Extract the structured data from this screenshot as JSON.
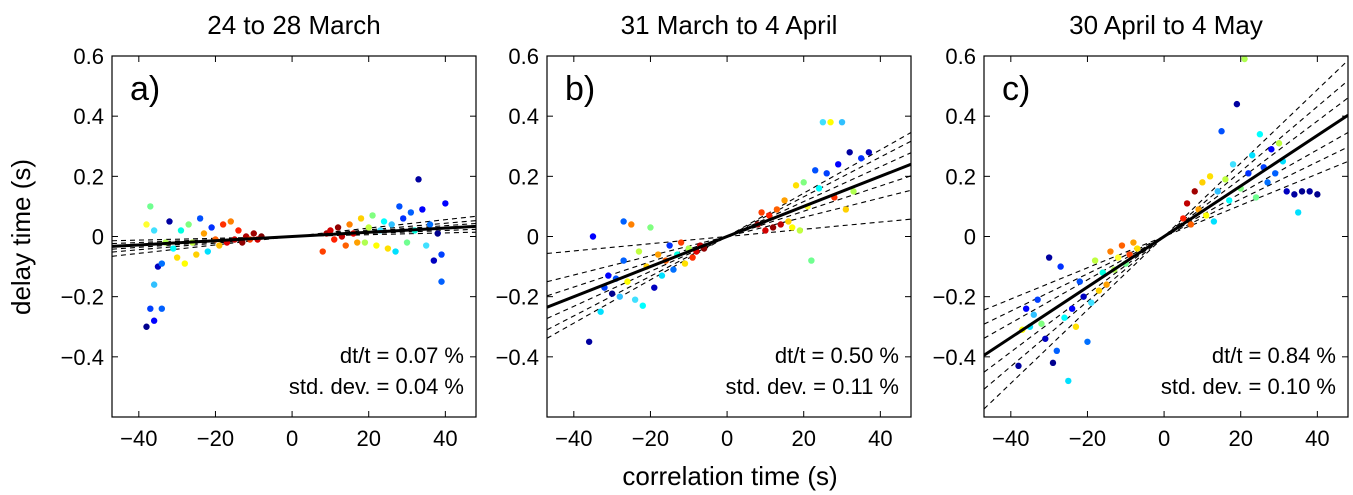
{
  "figure": {
    "xlabel": "correlation time (s)",
    "ylabel": "delay time (s)"
  },
  "chart_data": [
    {
      "type": "scatter",
      "title": "24 to 28 March",
      "panel_label": "a)",
      "annotation": {
        "line1": "dt/t = 0.07 %",
        "line2": "std. dev. = 0.04 %"
      },
      "xlim": [
        -47,
        48
      ],
      "ylim": [
        -0.6,
        0.6
      ],
      "xticks": [
        -40,
        -20,
        0,
        20,
        40
      ],
      "xtick_labels": [
        "−40",
        "−20",
        "0",
        "20",
        "40"
      ],
      "yticks": [
        -0.4,
        -0.2,
        0,
        0.2,
        0.4,
        0.6
      ],
      "ytick_labels": [
        "−0.4",
        "−0.2",
        "0",
        "0.2",
        "0.4",
        "0.6"
      ],
      "fit_slope": 0.0007,
      "dashed_slopes": [
        0.0003,
        0.0005,
        0.0009,
        0.0011,
        0.0014
      ],
      "points": [
        {
          "x": -38,
          "y": -0.3,
          "c": "#00008f"
        },
        {
          "x": -37,
          "y": -0.24,
          "c": "#0040ff"
        },
        {
          "x": -36,
          "y": -0.28,
          "c": "#0000ff"
        },
        {
          "x": -34,
          "y": -0.24,
          "c": "#0060ff"
        },
        {
          "x": -35,
          "y": -0.1,
          "c": "#0000c0"
        },
        {
          "x": -36,
          "y": -0.16,
          "c": "#30c0ff"
        },
        {
          "x": -34,
          "y": -0.09,
          "c": "#0070ff"
        },
        {
          "x": -37,
          "y": 0.1,
          "c": "#70ff90"
        },
        {
          "x": -38,
          "y": 0.04,
          "c": "#ffff30"
        },
        {
          "x": -36,
          "y": 0.02,
          "c": "#40e0ff"
        },
        {
          "x": -33,
          "y": -0.02,
          "c": "#b0ff50"
        },
        {
          "x": -32,
          "y": 0.05,
          "c": "#0000a0"
        },
        {
          "x": -31,
          "y": -0.04,
          "c": "#00ffff"
        },
        {
          "x": -30,
          "y": -0.07,
          "c": "#ffe000"
        },
        {
          "x": -29,
          "y": 0.02,
          "c": "#00ffe0"
        },
        {
          "x": -28,
          "y": -0.09,
          "c": "#ffff00"
        },
        {
          "x": -27,
          "y": 0.04,
          "c": "#80ff80"
        },
        {
          "x": -26,
          "y": -0.02,
          "c": "#c0ff40"
        },
        {
          "x": -25,
          "y": -0.06,
          "c": "#ffd000"
        },
        {
          "x": -24,
          "y": 0.06,
          "c": "#0050ff"
        },
        {
          "x": -23,
          "y": 0.01,
          "c": "#ffa000"
        },
        {
          "x": -22,
          "y": -0.05,
          "c": "#00e0ff"
        },
        {
          "x": -21,
          "y": 0.03,
          "c": "#0030ff"
        },
        {
          "x": -20,
          "y": -0.01,
          "c": "#ff6000"
        },
        {
          "x": -19,
          "y": -0.03,
          "c": "#ffc000"
        },
        {
          "x": -18,
          "y": 0.04,
          "c": "#ff3000"
        },
        {
          "x": -17,
          "y": -0.02,
          "c": "#e00000"
        },
        {
          "x": -16,
          "y": 0.05,
          "c": "#ff8000"
        },
        {
          "x": -15,
          "y": -0.01,
          "c": "#c00000"
        },
        {
          "x": -14,
          "y": 0.02,
          "c": "#ff2000"
        },
        {
          "x": -13,
          "y": -0.02,
          "c": "#900000"
        },
        {
          "x": -12,
          "y": 0.0,
          "c": "#b00000"
        },
        {
          "x": -11,
          "y": -0.01,
          "c": "#ff4000"
        },
        {
          "x": -10,
          "y": 0.01,
          "c": "#a00000"
        },
        {
          "x": -9,
          "y": -0.01,
          "c": "#d00000"
        },
        {
          "x": -8,
          "y": 0.0,
          "c": "#800000"
        },
        {
          "x": 8,
          "y": -0.05,
          "c": "#ff4000"
        },
        {
          "x": 9,
          "y": 0.01,
          "c": "#a00000"
        },
        {
          "x": 10,
          "y": 0.02,
          "c": "#d00000"
        },
        {
          "x": 11,
          "y": -0.01,
          "c": "#ff2000"
        },
        {
          "x": 12,
          "y": 0.03,
          "c": "#900000"
        },
        {
          "x": 13,
          "y": 0.0,
          "c": "#c00000"
        },
        {
          "x": 14,
          "y": -0.03,
          "c": "#ff6000"
        },
        {
          "x": 15,
          "y": 0.04,
          "c": "#ff8000"
        },
        {
          "x": 16,
          "y": 0.01,
          "c": "#e00000"
        },
        {
          "x": 17,
          "y": -0.02,
          "c": "#ffa000"
        },
        {
          "x": 18,
          "y": 0.06,
          "c": "#ffd000"
        },
        {
          "x": 19,
          "y": -0.02,
          "c": "#b0ff50"
        },
        {
          "x": 20,
          "y": 0.03,
          "c": "#c0ff40"
        },
        {
          "x": 21,
          "y": 0.07,
          "c": "#80ff80"
        },
        {
          "x": 22,
          "y": -0.03,
          "c": "#ffff00"
        },
        {
          "x": 23,
          "y": 0.02,
          "c": "#40e0ff"
        },
        {
          "x": 24,
          "y": 0.05,
          "c": "#00ffff"
        },
        {
          "x": 25,
          "y": -0.04,
          "c": "#ffe000"
        },
        {
          "x": 26,
          "y": 0.04,
          "c": "#30c0ff"
        },
        {
          "x": 27,
          "y": -0.05,
          "c": "#00e0ff"
        },
        {
          "x": 28,
          "y": 0.1,
          "c": "#0050ff"
        },
        {
          "x": 29,
          "y": 0.06,
          "c": "#0030ff"
        },
        {
          "x": 30,
          "y": -0.02,
          "c": "#70ff90"
        },
        {
          "x": 31,
          "y": 0.08,
          "c": "#0060ff"
        },
        {
          "x": 32,
          "y": 0.02,
          "c": "#00ffe0"
        },
        {
          "x": 33,
          "y": 0.19,
          "c": "#0000a0"
        },
        {
          "x": 34,
          "y": 0.09,
          "c": "#0000ff"
        },
        {
          "x": 35,
          "y": -0.03,
          "c": "#40e0ff"
        },
        {
          "x": 36,
          "y": 0.04,
          "c": "#0070ff"
        },
        {
          "x": 37,
          "y": -0.08,
          "c": "#0000c0"
        },
        {
          "x": 38,
          "y": 0.01,
          "c": "#00008f"
        },
        {
          "x": 39,
          "y": -0.15,
          "c": "#0060ff"
        },
        {
          "x": 40,
          "y": 0.11,
          "c": "#0000ff"
        },
        {
          "x": 39,
          "y": -0.06,
          "c": "#0040ff"
        }
      ]
    },
    {
      "type": "scatter",
      "title": "31 March to 4 April",
      "panel_label": "b)",
      "annotation": {
        "line1": "dt/t = 0.50 %",
        "line2": "std. dev. = 0.11 %"
      },
      "xlim": [
        -47,
        48
      ],
      "ylim": [
        -0.6,
        0.6
      ],
      "xticks": [
        -40,
        -20,
        0,
        20,
        40
      ],
      "xtick_labels": [
        "−40",
        "−20",
        "0",
        "20",
        "40"
      ],
      "yticks": [
        -0.4,
        -0.2,
        0,
        0.2,
        0.4,
        0.6
      ],
      "ytick_labels": [
        "−0.4",
        "−0.2",
        "0",
        "0.2",
        "0.4",
        "0.6"
      ],
      "fit_slope": 0.005,
      "dashed_slopes": [
        0.0012,
        0.0032,
        0.0042,
        0.0058,
        0.0066,
        0.0072
      ],
      "points": [
        {
          "x": -36,
          "y": -0.35,
          "c": "#0000a0"
        },
        {
          "x": -32,
          "y": -0.17,
          "c": "#0040ff"
        },
        {
          "x": -31,
          "y": -0.13,
          "c": "#0000ff"
        },
        {
          "x": -30,
          "y": -0.19,
          "c": "#00008f"
        },
        {
          "x": -29,
          "y": -0.14,
          "c": "#0050ff"
        },
        {
          "x": -28,
          "y": -0.2,
          "c": "#30c0ff"
        },
        {
          "x": -27,
          "y": -0.08,
          "c": "#0060ff"
        },
        {
          "x": -26,
          "y": -0.15,
          "c": "#ffff00"
        },
        {
          "x": -25,
          "y": 0.04,
          "c": "#ff8000"
        },
        {
          "x": -24,
          "y": -0.21,
          "c": "#40e0ff"
        },
        {
          "x": -23,
          "y": -0.05,
          "c": "#c0ff40"
        },
        {
          "x": -22,
          "y": -0.23,
          "c": "#00ffff"
        },
        {
          "x": -21,
          "y": -0.1,
          "c": "#ffd000"
        },
        {
          "x": -20,
          "y": 0.03,
          "c": "#80ff80"
        },
        {
          "x": -19,
          "y": -0.17,
          "c": "#0000c0"
        },
        {
          "x": -18,
          "y": -0.06,
          "c": "#ffa000"
        },
        {
          "x": -17,
          "y": -0.13,
          "c": "#00e0ff"
        },
        {
          "x": -16,
          "y": -0.08,
          "c": "#ff6000"
        },
        {
          "x": -15,
          "y": -0.03,
          "c": "#0030ff"
        },
        {
          "x": -14,
          "y": -0.11,
          "c": "#0070ff"
        },
        {
          "x": -13,
          "y": -0.06,
          "c": "#00ffe0"
        },
        {
          "x": -12,
          "y": -0.02,
          "c": "#ff4000"
        },
        {
          "x": -11,
          "y": -0.09,
          "c": "#ffe000"
        },
        {
          "x": -10,
          "y": -0.04,
          "c": "#b0ff50"
        },
        {
          "x": -9,
          "y": -0.07,
          "c": "#ff3000"
        },
        {
          "x": -8,
          "y": -0.05,
          "c": "#e00000"
        },
        {
          "x": -7,
          "y": -0.03,
          "c": "#c00000"
        },
        {
          "x": -6,
          "y": -0.04,
          "c": "#900000"
        },
        {
          "x": 8,
          "y": 0.04,
          "c": "#a00000"
        },
        {
          "x": 9,
          "y": 0.08,
          "c": "#ff4000"
        },
        {
          "x": 10,
          "y": 0.02,
          "c": "#d00000"
        },
        {
          "x": 11,
          "y": 0.07,
          "c": "#ff2000"
        },
        {
          "x": 12,
          "y": 0.03,
          "c": "#900000"
        },
        {
          "x": 13,
          "y": 0.09,
          "c": "#ff6000"
        },
        {
          "x": 14,
          "y": 0.04,
          "c": "#c00000"
        },
        {
          "x": 15,
          "y": 0.12,
          "c": "#ffa000"
        },
        {
          "x": 16,
          "y": 0.05,
          "c": "#ffd000"
        },
        {
          "x": 17,
          "y": 0.03,
          "c": "#ffff00"
        },
        {
          "x": 18,
          "y": 0.17,
          "c": "#ffe000"
        },
        {
          "x": 19,
          "y": 0.02,
          "c": "#c0ff40"
        },
        {
          "x": 20,
          "y": 0.18,
          "c": "#80ff80"
        },
        {
          "x": 21,
          "y": 0.1,
          "c": "#ffff30"
        },
        {
          "x": 22,
          "y": -0.08,
          "c": "#70ff90"
        },
        {
          "x": 23,
          "y": 0.22,
          "c": "#0050ff"
        },
        {
          "x": 24,
          "y": 0.16,
          "c": "#00ffff"
        },
        {
          "x": 25,
          "y": 0.38,
          "c": "#40e0ff"
        },
        {
          "x": 26,
          "y": 0.21,
          "c": "#0040ff"
        },
        {
          "x": 27,
          "y": 0.38,
          "c": "#ffff00"
        },
        {
          "x": 28,
          "y": 0.13,
          "c": "#ff3000"
        },
        {
          "x": 29,
          "y": 0.24,
          "c": "#0000ff"
        },
        {
          "x": 30,
          "y": 0.38,
          "c": "#30c0ff"
        },
        {
          "x": 31,
          "y": 0.09,
          "c": "#ffd000"
        },
        {
          "x": 32,
          "y": 0.28,
          "c": "#0000a0"
        },
        {
          "x": 33,
          "y": 0.15,
          "c": "#b0ff50"
        },
        {
          "x": 35,
          "y": 0.26,
          "c": "#0030ff"
        },
        {
          "x": 37,
          "y": 0.28,
          "c": "#0000c0"
        },
        {
          "x": -35,
          "y": 0.0,
          "c": "#0000ff"
        },
        {
          "x": -33,
          "y": -0.25,
          "c": "#00e0ff"
        },
        {
          "x": -27,
          "y": 0.05,
          "c": "#0060ff"
        }
      ]
    },
    {
      "type": "scatter",
      "title": "30 April to 4 May",
      "panel_label": "c)",
      "annotation": {
        "line1": "dt/t = 0.84 %",
        "line2": "std. dev. = 0.10 %"
      },
      "xlim": [
        -47,
        48
      ],
      "ylim": [
        -0.6,
        0.6
      ],
      "xticks": [
        -40,
        -20,
        0,
        20,
        40
      ],
      "xtick_labels": [
        "−40",
        "−20",
        "0",
        "20",
        "40"
      ],
      "yticks": [
        -0.4,
        -0.2,
        0,
        0.2,
        0.4,
        0.6
      ],
      "ytick_labels": [
        "−0.4",
        "−0.2",
        "0",
        "0.2",
        "0.4",
        "0.6"
      ],
      "fit_slope": 0.0084,
      "dashed_slopes": [
        0.0052,
        0.0062,
        0.0072,
        0.0096,
        0.0108,
        0.0122
      ],
      "points": [
        {
          "x": -38,
          "y": -0.43,
          "c": "#0000a0"
        },
        {
          "x": -37,
          "y": -0.31,
          "c": "#ffff00"
        },
        {
          "x": -36,
          "y": -0.24,
          "c": "#0000ff"
        },
        {
          "x": -35,
          "y": -0.3,
          "c": "#00e0ff"
        },
        {
          "x": -34,
          "y": -0.26,
          "c": "#30c0ff"
        },
        {
          "x": -33,
          "y": -0.21,
          "c": "#0040ff"
        },
        {
          "x": -32,
          "y": -0.29,
          "c": "#80ff80"
        },
        {
          "x": -31,
          "y": -0.34,
          "c": "#0000c0"
        },
        {
          "x": -30,
          "y": -0.07,
          "c": "#0000a0"
        },
        {
          "x": -29,
          "y": -0.42,
          "c": "#00008f"
        },
        {
          "x": -28,
          "y": -0.38,
          "c": "#0060ff"
        },
        {
          "x": -27,
          "y": -0.1,
          "c": "#0030ff"
        },
        {
          "x": -26,
          "y": -0.27,
          "c": "#00ffff"
        },
        {
          "x": -25,
          "y": -0.48,
          "c": "#00e0ff"
        },
        {
          "x": -24,
          "y": -0.24,
          "c": "#0000ff"
        },
        {
          "x": -23,
          "y": -0.3,
          "c": "#ffe000"
        },
        {
          "x": -22,
          "y": -0.15,
          "c": "#0050ff"
        },
        {
          "x": -21,
          "y": -0.2,
          "c": "#0000c0"
        },
        {
          "x": -20,
          "y": -0.35,
          "c": "#0070ff"
        },
        {
          "x": -19,
          "y": -0.22,
          "c": "#40e0ff"
        },
        {
          "x": -18,
          "y": -0.08,
          "c": "#c0ff40"
        },
        {
          "x": -17,
          "y": -0.18,
          "c": "#ffd000"
        },
        {
          "x": -16,
          "y": -0.12,
          "c": "#00ffe0"
        },
        {
          "x": -15,
          "y": -0.16,
          "c": "#ffa000"
        },
        {
          "x": -14,
          "y": -0.05,
          "c": "#ff8000"
        },
        {
          "x": -13,
          "y": -0.11,
          "c": "#b0ff50"
        },
        {
          "x": -12,
          "y": -0.07,
          "c": "#ffff30"
        },
        {
          "x": -11,
          "y": -0.03,
          "c": "#ff6000"
        },
        {
          "x": -10,
          "y": -0.09,
          "c": "#70ff90"
        },
        {
          "x": -9,
          "y": -0.06,
          "c": "#ff4000"
        },
        {
          "x": -8,
          "y": -0.02,
          "c": "#ffa000"
        },
        {
          "x": -7,
          "y": -0.04,
          "c": "#ffe000"
        },
        {
          "x": 5,
          "y": 0.06,
          "c": "#ff2000"
        },
        {
          "x": 6,
          "y": 0.11,
          "c": "#c00000"
        },
        {
          "x": 7,
          "y": 0.04,
          "c": "#ff6000"
        },
        {
          "x": 8,
          "y": 0.15,
          "c": "#a00000"
        },
        {
          "x": 9,
          "y": 0.09,
          "c": "#ffa000"
        },
        {
          "x": 10,
          "y": 0.18,
          "c": "#ffd000"
        },
        {
          "x": 11,
          "y": 0.07,
          "c": "#ffff00"
        },
        {
          "x": 12,
          "y": 0.2,
          "c": "#ffe000"
        },
        {
          "x": 13,
          "y": 0.05,
          "c": "#00e0ff"
        },
        {
          "x": 14,
          "y": 0.15,
          "c": "#30c0ff"
        },
        {
          "x": 15,
          "y": 0.35,
          "c": "#0050ff"
        },
        {
          "x": 16,
          "y": 0.19,
          "c": "#c0ff40"
        },
        {
          "x": 17,
          "y": 0.12,
          "c": "#00ffff"
        },
        {
          "x": 18,
          "y": 0.24,
          "c": "#40e0ff"
        },
        {
          "x": 19,
          "y": 0.44,
          "c": "#0000a0"
        },
        {
          "x": 20,
          "y": 0.16,
          "c": "#80ff80"
        },
        {
          "x": 21,
          "y": 0.59,
          "c": "#b0ff50"
        },
        {
          "x": 22,
          "y": 0.21,
          "c": "#0030ff"
        },
        {
          "x": 23,
          "y": 0.27,
          "c": "#00e0ff"
        },
        {
          "x": 24,
          "y": 0.13,
          "c": "#70ff90"
        },
        {
          "x": 25,
          "y": 0.34,
          "c": "#00ffff"
        },
        {
          "x": 26,
          "y": 0.23,
          "c": "#0040ff"
        },
        {
          "x": 27,
          "y": 0.18,
          "c": "#0070ff"
        },
        {
          "x": 28,
          "y": 0.29,
          "c": "#0000ff"
        },
        {
          "x": 29,
          "y": 0.21,
          "c": "#0060ff"
        },
        {
          "x": 31,
          "y": 0.25,
          "c": "#00e0ff"
        },
        {
          "x": 32,
          "y": 0.15,
          "c": "#0000c0"
        },
        {
          "x": 34,
          "y": 0.14,
          "c": "#0000a0"
        },
        {
          "x": 35,
          "y": 0.08,
          "c": "#00e0ff"
        },
        {
          "x": 36,
          "y": 0.15,
          "c": "#00008f"
        },
        {
          "x": 38,
          "y": 0.15,
          "c": "#0000a0"
        },
        {
          "x": 40,
          "y": 0.14,
          "c": "#00008f"
        },
        {
          "x": 30,
          "y": 0.31,
          "c": "#c0ff40"
        }
      ]
    }
  ]
}
